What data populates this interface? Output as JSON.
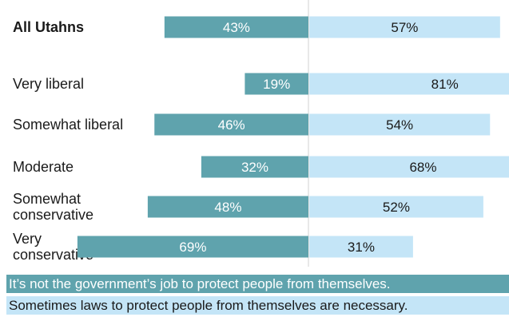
{
  "chart_data": {
    "type": "bar",
    "subtype": "diverging-stacked",
    "categories": [
      "All Utahns",
      "Very liberal",
      "Somewhat liberal",
      "Moderate",
      "Somewhat conservative",
      "Very conservative"
    ],
    "category_lines": [
      [
        "All Utahns"
      ],
      [
        "Very liberal"
      ],
      [
        "Somewhat liberal"
      ],
      [
        "Moderate"
      ],
      [
        "Somewhat",
        "conservative"
      ],
      [
        "Very",
        "conservative"
      ]
    ],
    "series": [
      {
        "name": "It’s not the government’s job to protect people from themselves.",
        "values": [
          43,
          19,
          46,
          32,
          48,
          69
        ],
        "labels": [
          "43%",
          "19%",
          "46%",
          "32%",
          "48%",
          "69%"
        ],
        "color": "#5fa3ad"
      },
      {
        "name": "Sometimes laws to protect people from themselves are necessary.",
        "values": [
          57,
          81,
          54,
          68,
          52,
          31
        ],
        "labels": [
          "57%",
          "81%",
          "54%",
          "68%",
          "52%",
          "31%"
        ],
        "color": "#c4e5f7"
      }
    ],
    "unit": "%",
    "legend_position": "bottom",
    "grid": false
  }
}
